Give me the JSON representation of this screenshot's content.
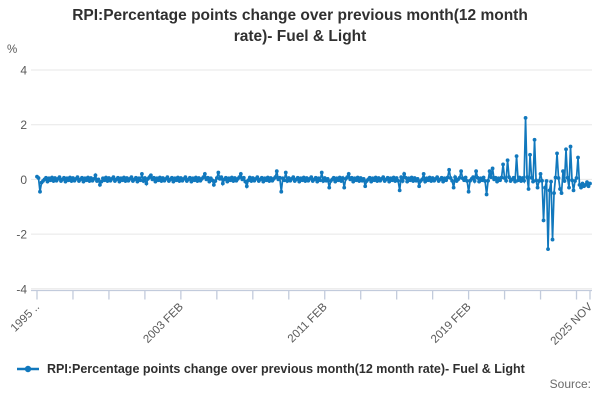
{
  "title": "RPI:Percentage points change over previous month(12 month rate)- Fuel & Light",
  "y_axis": {
    "unit_label": "%",
    "tick_labels": [
      "4",
      "2",
      "0",
      "-2",
      "-4"
    ],
    "tick_values": [
      4,
      2,
      0,
      -2,
      -4
    ]
  },
  "x_axis": {
    "tick_labels": [
      "1995 ..",
      "2003 FEB",
      "2011 FEB",
      "2019 FEB",
      "2025 NOV"
    ],
    "label_point_indices": [
      0,
      96,
      192,
      288,
      369
    ],
    "minor_tick_step_months": 24
  },
  "legend": {
    "series_label": "RPI:Percentage points change over previous month(12 month rate)- Fuel & Light"
  },
  "source": {
    "label": "Source:"
  },
  "colors": {
    "series_blue": "#1178bd",
    "gridline": "#e7e7e7",
    "axis_tick": "#c2cbdc",
    "axis_text": "#595959"
  },
  "chart_data": {
    "type": "line",
    "title": "RPI:Percentage points change over previous month(12 month rate)- Fuel & Light",
    "xlabel": "",
    "ylabel": "%",
    "ylim": [
      -4,
      4
    ],
    "x_start_label": "1995 FEB",
    "x_end_label": "2025 NOV",
    "n_points": 370,
    "legend_position": "bottom-left",
    "grid": "horizontal",
    "series_name": "RPI:Percentage points change over previous month(12 month rate)- Fuel & Light",
    "base_pattern": [
      0.05,
      -0.05,
      0.02,
      0.08,
      -0.06,
      0.0,
      0.06,
      -0.08,
      0.04,
      -0.03,
      0.07,
      -0.06
    ],
    "overrides": {
      "0": 0.1,
      "1": 0.05,
      "2": -0.45,
      "3": -0.12,
      "39": 0.15,
      "42": -0.2,
      "70": 0.2,
      "73": -0.15,
      "76": 0.15,
      "112": 0.2,
      "118": -0.2,
      "121": 0.25,
      "124": -0.15,
      "136": 0.2,
      "140": -0.25,
      "160": 0.3,
      "163": -0.45,
      "166": 0.25,
      "190": 0.25,
      "195": -0.3,
      "205": -0.3,
      "208": 0.2,
      "219": -0.25,
      "242": -0.4,
      "245": 0.2,
      "255": -0.25,
      "258": 0.2,
      "275": 0.35,
      "278": -0.3,
      "283": 0.3,
      "288": -0.45,
      "293": 0.3,
      "300": -0.55,
      "302": 0.3,
      "304": 0.4,
      "311": 0.55,
      "314": 0.7,
      "320": 0.85,
      "326": 2.25,
      "328": -0.35,
      "329": 0.9,
      "332": 1.45,
      "334": -0.3,
      "336": 0.2,
      "338": -1.5,
      "339": -0.3,
      "341": -2.55,
      "342": -0.4,
      "344": -2.2,
      "345": -0.5,
      "347": 0.95,
      "349": -0.35,
      "350": -0.5,
      "351": 0.3,
      "353": 1.1,
      "355": -0.3,
      "356": 1.2,
      "358": -0.4,
      "361": 0.8,
      "362": -0.2,
      "363": -0.3,
      "364": -0.15,
      "365": -0.25,
      "366": -0.2,
      "367": -0.1,
      "368": -0.25,
      "369": -0.15
    }
  }
}
